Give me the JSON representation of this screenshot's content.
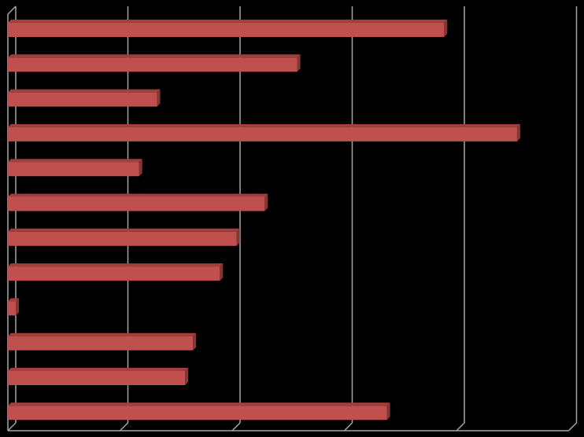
{
  "chart_data": {
    "type": "bar",
    "orientation": "horizontal",
    "style": "3d",
    "categories": [
      "",
      "",
      "",
      "",
      "",
      "",
      "",
      "",
      "",
      "",
      "",
      ""
    ],
    "values": [
      3.89,
      2.58,
      1.33,
      4.54,
      1.17,
      2.29,
      2.04,
      1.89,
      0.07,
      1.65,
      1.58,
      3.38
    ],
    "xlim": [
      0,
      5
    ],
    "grid": true,
    "legend": "none",
    "title": "",
    "xlabel": "",
    "ylabel": "",
    "colors": {
      "bar_front": "#c0504d",
      "bar_top": "#a13f3c",
      "bar_side": "#8a3331",
      "gridline": "#a6a6a6",
      "background": "#000000"
    }
  }
}
